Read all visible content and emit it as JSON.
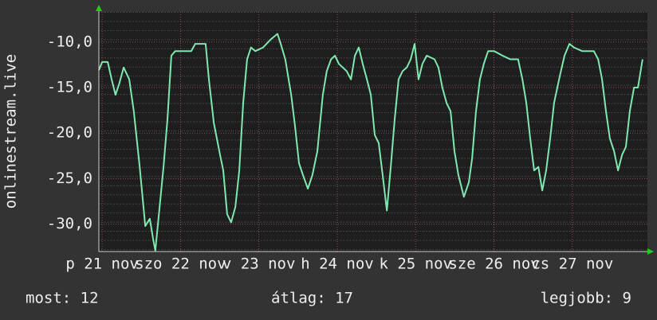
{
  "chart_data": {
    "type": "line",
    "y_label": "onlinestream.live",
    "xlim": [
      0,
      168
    ],
    "xticks": [
      {
        "value": 1,
        "label": "p 21 nov"
      },
      {
        "value": 25,
        "label": "szo 22 nov"
      },
      {
        "value": 49,
        "label": "v 23 nov"
      },
      {
        "value": 73,
        "label": "h 24 nov"
      },
      {
        "value": 97,
        "label": "k 25 nov"
      },
      {
        "value": 121,
        "label": "sze 26 nov"
      },
      {
        "value": 145,
        "label": "cs 27 nov"
      }
    ],
    "ylim": [
      -33,
      -6.7
    ],
    "yticks": [
      {
        "value": -30,
        "label": "-30,0"
      },
      {
        "value": -25,
        "label": "-25,0"
      },
      {
        "value": -20,
        "label": "-20,0"
      },
      {
        "value": -15,
        "label": "-15,0"
      },
      {
        "value": -10,
        "label": "-10,0"
      }
    ],
    "grid": true,
    "series": [
      {
        "color": "#7fe8b0",
        "x": [
          0,
          1.0,
          2.7,
          3.9,
          5.1,
          6.3,
          7.6,
          9.3,
          10.7,
          12.5,
          14.2,
          15.6,
          16.6,
          17.3,
          18.6,
          19.8,
          21.0,
          22.2,
          23.4,
          28.3,
          29.5,
          32.7,
          33.7,
          35.2,
          36.9,
          38.1,
          39.3,
          40.5,
          41.8,
          43.0,
          44.2,
          45.4,
          46.6,
          47.9,
          50.3,
          52.7,
          54.7,
          55.7,
          57.1,
          58.9,
          60.1,
          61.3,
          62.5,
          64.0,
          65.4,
          66.9,
          68.6,
          69.8,
          71.1,
          72.3,
          73.5,
          75.9,
          77.2,
          78.4,
          79.6,
          80.8,
          82.1,
          83.3,
          84.5,
          85.7,
          86.9,
          88.2,
          89.4,
          90.6,
          91.8,
          93.0,
          94.3,
          95.5,
          96.7,
          97.9,
          99.1,
          100.4,
          102.8,
          104.0,
          105.2,
          106.5,
          107.7,
          108.9,
          110.1,
          111.8,
          113.3,
          114.3,
          115.5,
          116.7,
          117.9,
          119.2,
          121.1,
          123.6,
          126.0,
          128.4,
          129.7,
          130.9,
          132.1,
          133.3,
          134.6,
          135.8,
          137.0,
          138.2,
          139.4,
          141.2,
          142.6,
          144.1,
          145.5,
          148.0,
          151.6,
          152.9,
          154.1,
          155.3,
          156.5,
          157.8,
          159.0,
          160.2,
          161.4,
          162.6,
          163.9,
          165.1,
          166.5
        ],
        "values": [
          -13.1,
          -12.2,
          -12.2,
          -14.1,
          -15.8,
          -14.5,
          -12.8,
          -14.1,
          -17.6,
          -23.7,
          -30.2,
          -29.4,
          -31.6,
          -32.9,
          -28.1,
          -23.7,
          -18.5,
          -11.5,
          -11.0,
          -11.0,
          -10.2,
          -10.2,
          -14.1,
          -18.9,
          -22.0,
          -24.1,
          -28.9,
          -29.8,
          -28.1,
          -24.1,
          -16.7,
          -11.9,
          -10.6,
          -11.0,
          -10.6,
          -9.7,
          -9.1,
          -10.2,
          -11.9,
          -15.8,
          -19.3,
          -23.3,
          -24.6,
          -26.1,
          -24.6,
          -22.0,
          -15.8,
          -13.2,
          -11.9,
          -11.5,
          -12.4,
          -13.2,
          -14.1,
          -11.5,
          -10.6,
          -12.4,
          -14.1,
          -15.8,
          -20.2,
          -21.1,
          -24.6,
          -28.5,
          -23.7,
          -18.5,
          -14.1,
          -13.2,
          -12.8,
          -11.9,
          -10.2,
          -14.1,
          -12.4,
          -11.5,
          -11.9,
          -12.8,
          -15.0,
          -16.7,
          -17.6,
          -22.0,
          -24.6,
          -27.0,
          -25.4,
          -22.8,
          -17.6,
          -14.1,
          -12.4,
          -11.0,
          -11.0,
          -11.5,
          -11.9,
          -11.9,
          -14.1,
          -16.7,
          -20.6,
          -24.1,
          -23.7,
          -26.3,
          -24.1,
          -20.6,
          -16.7,
          -13.7,
          -11.5,
          -10.2,
          -10.6,
          -11.0,
          -11.0,
          -11.9,
          -14.1,
          -17.6,
          -20.6,
          -22.0,
          -24.1,
          -22.4,
          -21.5,
          -17.6,
          -15.0,
          -15.0,
          -11.9
        ]
      }
    ],
    "footer": {
      "current": "most: 12",
      "average": "átlag: 17",
      "best": "legjobb: 9"
    }
  }
}
